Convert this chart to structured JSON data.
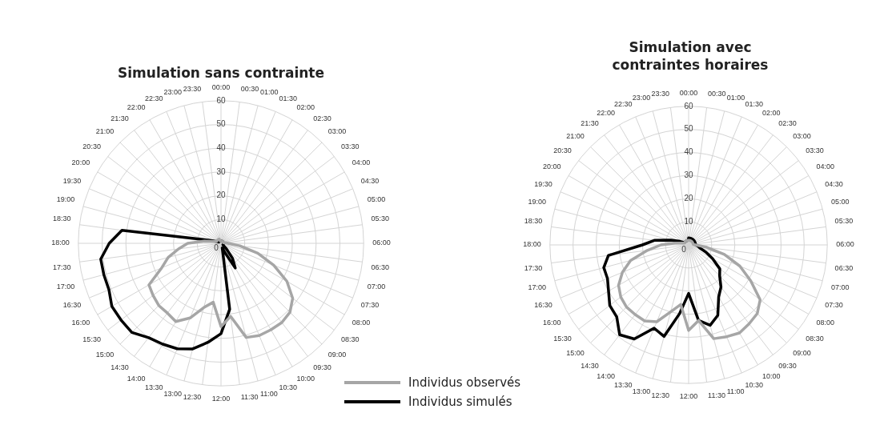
{
  "chart_data": [
    {
      "type": "radar",
      "title": "Simulation sans contrainte",
      "categories": [
        "00:00",
        "00:30",
        "01:00",
        "01:30",
        "02:00",
        "02:30",
        "03:00",
        "03:30",
        "04:00",
        "04:30",
        "05:00",
        "05:30",
        "06:00",
        "06:30",
        "07:00",
        "07:30",
        "08:00",
        "08:30",
        "09:00",
        "09:30",
        "10:00",
        "10:30",
        "11:00",
        "11:30",
        "12:00",
        "12:30",
        "13:00",
        "13:30",
        "14:00",
        "14:30",
        "15:00",
        "15:30",
        "16:00",
        "16:30",
        "17:00",
        "17:30",
        "18:00",
        "18:30",
        "19:00",
        "19:30",
        "20:00",
        "20:30",
        "21:00",
        "21:30",
        "22:00",
        "22:30",
        "23:00",
        "23:30"
      ],
      "series": [
        {
          "name": "Individus observés",
          "color": "#a6a6a6",
          "values": [
            1,
            1,
            1,
            1,
            1,
            1,
            1,
            1,
            1,
            1,
            1,
            2,
            3,
            8,
            16,
            24,
            32,
            38,
            41,
            42,
            42,
            42,
            41,
            31,
            35,
            25,
            28,
            34,
            38,
            37,
            37,
            36,
            35,
            27,
            23,
            18,
            14,
            7,
            3,
            2,
            2,
            2,
            2,
            2,
            2,
            2,
            1,
            1
          ]
        },
        {
          "name": "Individus simulés",
          "color": "#000000",
          "values": [
            1,
            1,
            1,
            1,
            1,
            1,
            1,
            1,
            1,
            1,
            1,
            1,
            1,
            1,
            1,
            1,
            1,
            1,
            3,
            8,
            12,
            4,
            2,
            28,
            38,
            42,
            46,
            48,
            49,
            50,
            53,
            53,
            53,
            51,
            51,
            51,
            47,
            42,
            5,
            2,
            1,
            1,
            1,
            1,
            1,
            1,
            1,
            1
          ]
        }
      ],
      "ylim": [
        0,
        60
      ],
      "yticks": [
        0,
        10,
        20,
        30,
        40,
        50,
        60
      ],
      "grid": true,
      "legend": "bottom right"
    },
    {
      "type": "radar",
      "title": "Simulation avec contraintes horaires",
      "categories": [
        "00:00",
        "00:30",
        "01:00",
        "01:30",
        "02:00",
        "02:30",
        "03:00",
        "03:30",
        "04:00",
        "04:30",
        "05:00",
        "05:30",
        "06:00",
        "06:30",
        "07:00",
        "07:30",
        "08:00",
        "08:30",
        "09:00",
        "09:30",
        "10:00",
        "10:30",
        "11:00",
        "11:30",
        "12:00",
        "12:30",
        "13:00",
        "13:30",
        "14:00",
        "14:30",
        "15:00",
        "15:30",
        "16:00",
        "16:30",
        "17:00",
        "17:30",
        "18:00",
        "18:30",
        "19:00",
        "19:30",
        "20:00",
        "20:30",
        "21:00",
        "21:30",
        "22:00",
        "22:30",
        "23:00",
        "23:30"
      ],
      "series": [
        {
          "color": "#a6a6a6",
          "values": [
            2,
            2,
            2,
            2,
            2,
            2,
            2,
            2,
            2,
            2,
            2,
            2,
            3,
            8,
            16,
            24,
            31,
            39,
            42,
            43,
            44,
            43,
            42,
            33,
            37,
            26,
            30,
            36,
            38,
            38,
            38,
            37,
            35,
            31,
            26,
            18,
            12,
            6,
            3,
            2,
            2,
            2,
            2,
            2,
            2,
            2,
            2,
            2
          ]
        },
        {
          "color": "#000000",
          "values": [
            3,
            3,
            3,
            3,
            3,
            3,
            3,
            3,
            3,
            3,
            3,
            3,
            3,
            4,
            5,
            8,
            12,
            17,
            19,
            23,
            26,
            33,
            36,
            33,
            21,
            30,
            41,
            39,
            47,
            49,
            44,
            43,
            40,
            38,
            38,
            35,
            20,
            15,
            8,
            4,
            2,
            2,
            2,
            2,
            2,
            2,
            2,
            2
          ]
        }
      ],
      "ylim": [
        0,
        60
      ],
      "yticks": [
        0,
        10,
        20,
        30,
        40,
        50,
        60
      ],
      "grid": true
    }
  ]
}
